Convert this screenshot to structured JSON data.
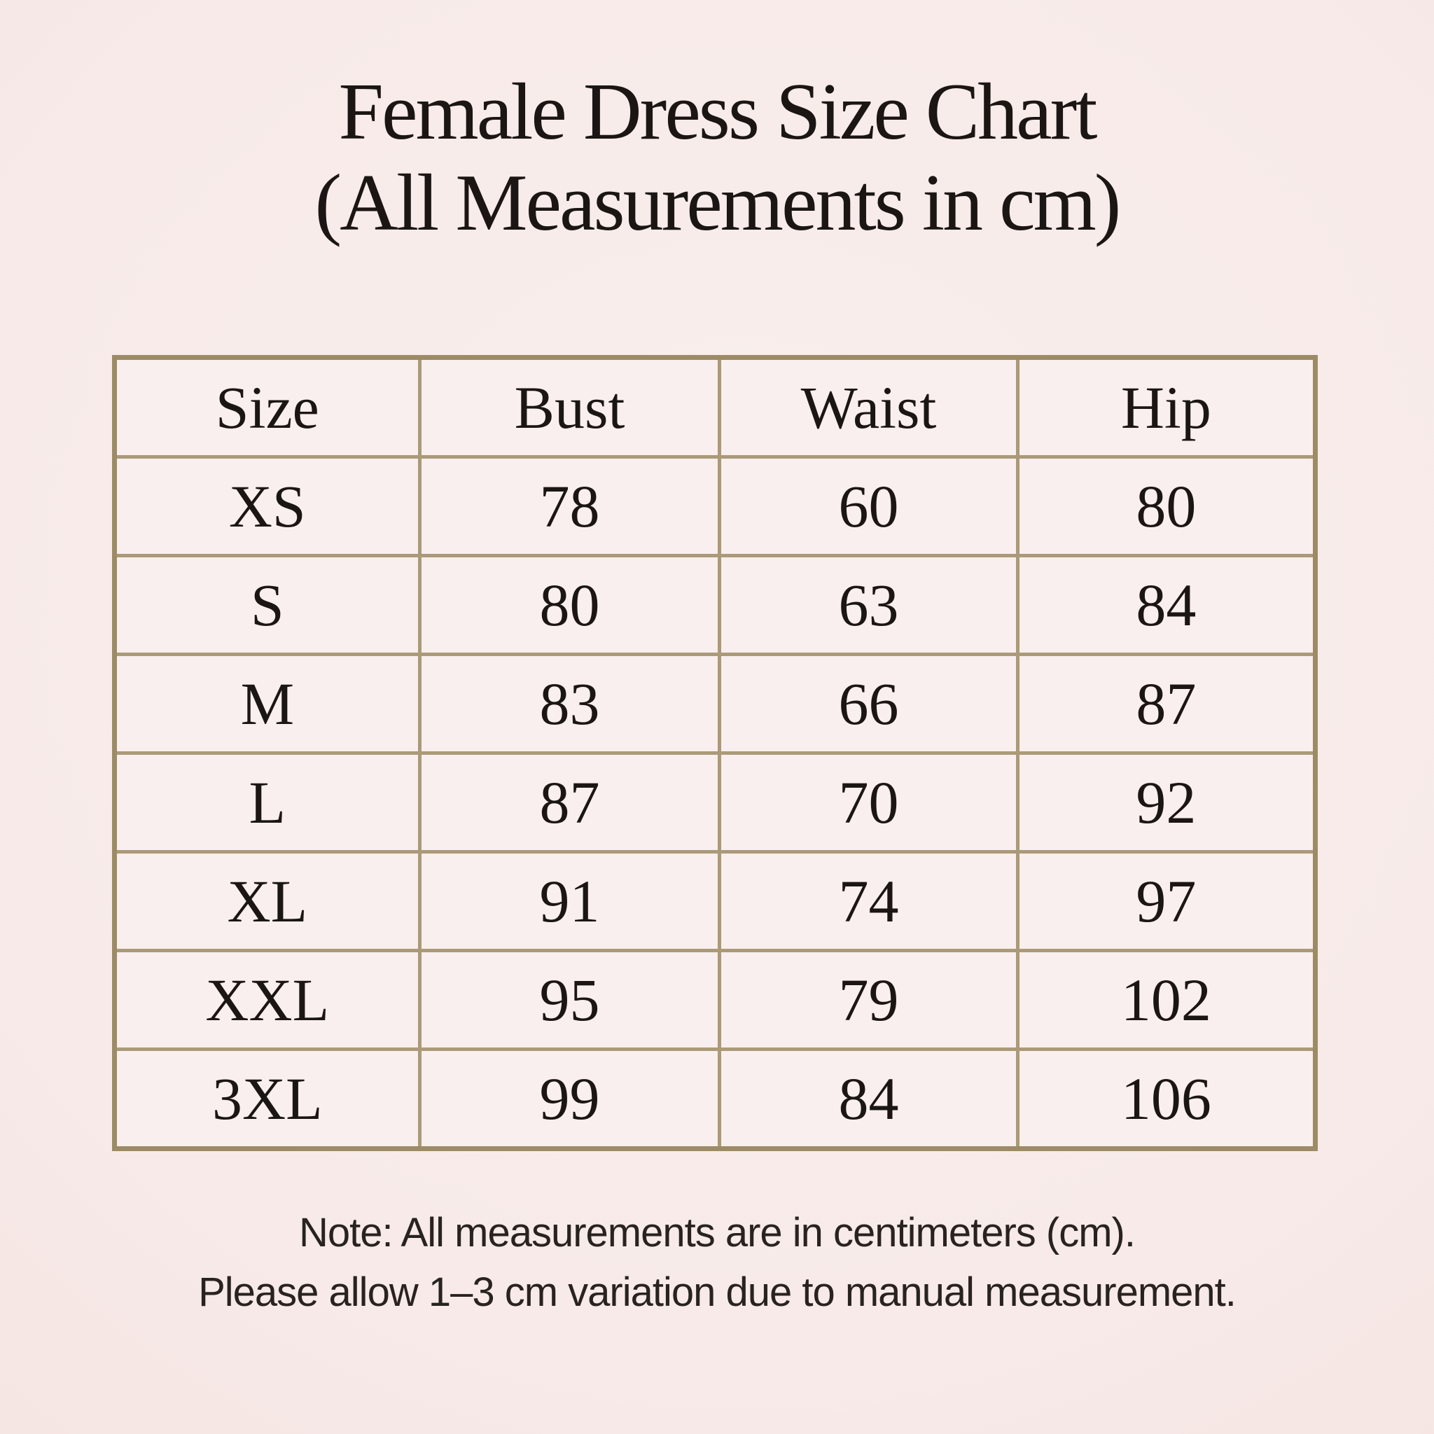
{
  "title": {
    "line1": "Female Dress Size Chart",
    "line2": "(All Measurements in cm)"
  },
  "table": {
    "headers": [
      "Size",
      "Bust",
      "Waist",
      "Hip"
    ],
    "rows": [
      [
        "XS",
        "78",
        "60",
        "80"
      ],
      [
        "S",
        "80",
        "63",
        "84"
      ],
      [
        "M",
        "83",
        "66",
        "87"
      ],
      [
        "L",
        "87",
        "70",
        "92"
      ],
      [
        "XL",
        "91",
        "74",
        "97"
      ],
      [
        "XXL",
        "95",
        "79",
        "102"
      ],
      [
        "3XL",
        "99",
        "84",
        "106"
      ]
    ]
  },
  "note": {
    "line1": "Note: All measurements are in centimeters (cm).",
    "line2": "Please allow 1–3 cm variation due to manual measurement."
  },
  "chart_data": {
    "type": "table",
    "title": "Female Dress Size Chart (All Measurements in cm)",
    "columns": [
      "Size",
      "Bust",
      "Waist",
      "Hip"
    ],
    "units": "cm",
    "rows": [
      {
        "size": "XS",
        "bust": 78,
        "waist": 60,
        "hip": 80
      },
      {
        "size": "S",
        "bust": 80,
        "waist": 63,
        "hip": 84
      },
      {
        "size": "M",
        "bust": 83,
        "waist": 66,
        "hip": 87
      },
      {
        "size": "L",
        "bust": 87,
        "waist": 70,
        "hip": 92
      },
      {
        "size": "XL",
        "bust": 91,
        "waist": 74,
        "hip": 97
      },
      {
        "size": "XXL",
        "bust": 95,
        "waist": 79,
        "hip": 102
      },
      {
        "size": "3XL",
        "bust": 99,
        "waist": 84,
        "hip": 106
      }
    ]
  },
  "colors": {
    "background_center": "#f9efed",
    "background_edge": "#f0d8d6",
    "cell_fill": "#f9efee",
    "border_inner": "#ab9a78",
    "border_outer": "#9d8b66",
    "text": "#1b1614",
    "note_text": "#292320"
  }
}
